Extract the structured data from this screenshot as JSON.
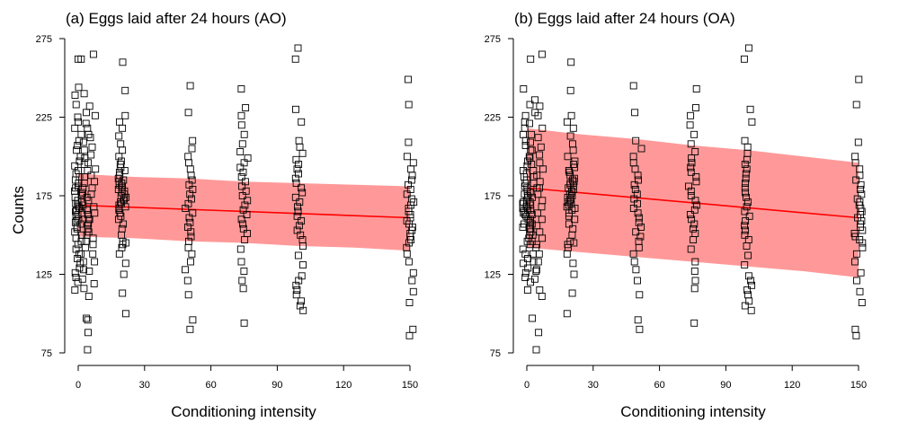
{
  "figure": {
    "ylabel": "Counts"
  },
  "chart_data": [
    {
      "type": "scatter",
      "title": "(a) Eggs laid after 24 hours (AO)",
      "xlabel": "Conditioning intensity",
      "ylabel": "Counts",
      "xlim": [
        0,
        150
      ],
      "ylim": [
        75,
        275
      ],
      "xticks": [
        "0",
        "30",
        "60",
        "90",
        "120",
        "150"
      ],
      "yticks": [
        "75",
        "125",
        "175",
        "225",
        "275"
      ],
      "band_color": "#ff9999",
      "line_color": "#ff0000",
      "fit_line": {
        "x": [
          0,
          150
        ],
        "y": [
          169,
          161
        ]
      },
      "band": {
        "x": [
          0,
          25,
          50,
          75,
          100,
          125,
          150
        ],
        "lower": [
          149,
          148,
          146,
          145,
          143,
          142,
          140
        ],
        "upper": [
          189,
          187,
          186,
          184,
          183,
          182,
          181
        ]
      },
      "groups": [
        {
          "x": 0,
          "y": [
            262,
            244,
            239,
            233,
            225,
            222,
            218,
            214,
            210,
            207,
            204,
            200,
            197,
            194,
            191,
            189,
            187,
            185,
            183,
            181,
            180,
            178,
            176,
            175,
            174,
            172,
            171,
            170,
            169,
            168,
            167,
            166,
            165,
            164,
            163,
            162,
            160,
            159,
            158,
            157,
            155,
            154,
            152,
            150,
            148,
            146,
            144,
            141,
            138,
            135,
            132,
            129,
            126,
            123,
            120,
            115
          ]
        },
        {
          "x": 3,
          "y": [
            262,
            240,
            228,
            221,
            214,
            209,
            204,
            199,
            195,
            191,
            187,
            183,
            180,
            177,
            174,
            171,
            169,
            166,
            163,
            160,
            157,
            154,
            150,
            146,
            142,
            138,
            133,
            128,
            122,
            116,
            97
          ]
        },
        {
          "x": 6,
          "y": [
            265,
            232,
            226,
            218,
            212,
            206,
            201,
            196,
            192,
            188,
            184,
            180,
            176,
            172,
            168,
            164,
            160,
            156,
            152,
            148,
            144,
            138,
            133,
            127,
            119,
            111,
            96,
            88,
            77
          ]
        },
        {
          "x": 20,
          "y": [
            260,
            242,
            226,
            222,
            218,
            213,
            208,
            204,
            200,
            197,
            195,
            193,
            191,
            190,
            188,
            186,
            185,
            184,
            183,
            182,
            181,
            180,
            179,
            178,
            177,
            176,
            175,
            174,
            173,
            172,
            171,
            170,
            169,
            168,
            167,
            166,
            164,
            162,
            160,
            157,
            154,
            150,
            146,
            145,
            144,
            142,
            138,
            132,
            125,
            113,
            100
          ]
        },
        {
          "x": 50,
          "y": [
            245,
            228,
            210,
            205,
            200,
            196,
            192,
            188,
            185,
            182,
            179,
            176,
            173,
            170,
            167,
            164,
            161,
            158,
            155,
            152,
            149,
            146,
            142,
            138,
            133,
            128,
            121,
            112,
            96,
            90
          ]
        },
        {
          "x": 75,
          "y": [
            243,
            231,
            226,
            220,
            214,
            208,
            203,
            199,
            196,
            193,
            190,
            187,
            184,
            181,
            178,
            175,
            172,
            169,
            166,
            163,
            160,
            157,
            154,
            151,
            147,
            141,
            133,
            127,
            121,
            116,
            94
          ]
        },
        {
          "x": 100,
          "y": [
            269,
            262,
            230,
            222,
            210,
            206,
            202,
            198,
            195,
            192,
            189,
            186,
            183,
            180,
            177,
            174,
            171,
            168,
            165,
            162,
            159,
            156,
            153,
            150,
            147,
            143,
            137,
            131,
            124,
            121,
            118,
            115,
            112,
            108,
            105,
            102
          ]
        },
        {
          "x": 150,
          "y": [
            249,
            233,
            209,
            200,
            196,
            192,
            188,
            185,
            182,
            179,
            176,
            173,
            171,
            169,
            167,
            165,
            163,
            161,
            159,
            157,
            155,
            153,
            151,
            149,
            147,
            145,
            142,
            138,
            133,
            126,
            121,
            114,
            107,
            90,
            86
          ]
        }
      ]
    },
    {
      "type": "scatter",
      "title": "(b) Eggs laid after 24 hours (OA)",
      "xlabel": "Conditioning intensity",
      "ylabel": "",
      "xlim": [
        0,
        150
      ],
      "ylim": [
        75,
        275
      ],
      "xticks": [
        "0",
        "30",
        "60",
        "90",
        "120",
        "150"
      ],
      "yticks": [
        "75",
        "125",
        "175",
        "225",
        "275"
      ],
      "band_color": "#ff9999",
      "line_color": "#ff0000",
      "fit_line": {
        "x": [
          0,
          150
        ],
        "y": [
          180,
          161
        ]
      },
      "band": {
        "x": [
          0,
          25,
          50,
          75,
          100,
          125,
          150
        ],
        "lower": [
          142,
          139,
          136,
          133,
          130,
          127,
          123
        ],
        "upper": [
          218,
          214,
          211,
          207,
          204,
          200,
          196
        ]
      },
      "groups": [
        {
          "x": 0,
          "y": [
            243,
            233,
            226,
            222,
            218,
            214,
            210,
            207,
            204,
            200,
            197,
            194,
            191,
            189,
            187,
            185,
            183,
            181,
            180,
            178,
            176,
            175,
            174,
            172,
            171,
            170,
            169,
            168,
            167,
            166,
            165,
            164,
            163,
            162,
            160,
            159,
            158,
            157,
            155,
            154,
            152,
            150,
            148,
            146,
            144,
            141,
            138,
            135,
            132,
            129,
            126,
            123,
            120,
            115
          ]
        },
        {
          "x": 3,
          "y": [
            262,
            236,
            228,
            221,
            214,
            209,
            204,
            199,
            195,
            191,
            187,
            183,
            180,
            177,
            174,
            171,
            169,
            166,
            163,
            160,
            157,
            154,
            150,
            146,
            142,
            138,
            133,
            128,
            122,
            97
          ]
        },
        {
          "x": 6,
          "y": [
            265,
            232,
            226,
            218,
            212,
            206,
            201,
            196,
            192,
            188,
            184,
            180,
            176,
            172,
            168,
            164,
            160,
            156,
            152,
            148,
            144,
            138,
            133,
            127,
            115,
            111,
            88,
            77
          ]
        },
        {
          "x": 20,
          "y": [
            260,
            242,
            226,
            222,
            218,
            213,
            208,
            204,
            200,
            197,
            195,
            193,
            191,
            190,
            188,
            186,
            185,
            184,
            183,
            182,
            181,
            180,
            179,
            178,
            177,
            176,
            175,
            174,
            173,
            172,
            171,
            170,
            169,
            168,
            167,
            166,
            164,
            162,
            160,
            157,
            154,
            150,
            146,
            145,
            144,
            142,
            138,
            132,
            125,
            113,
            100
          ]
        },
        {
          "x": 50,
          "y": [
            245,
            228,
            210,
            205,
            200,
            196,
            192,
            188,
            185,
            182,
            179,
            176,
            173,
            170,
            167,
            164,
            161,
            158,
            155,
            152,
            149,
            146,
            142,
            138,
            133,
            128,
            121,
            112,
            96,
            90
          ]
        },
        {
          "x": 75,
          "y": [
            243,
            231,
            226,
            220,
            214,
            208,
            203,
            199,
            196,
            193,
            190,
            187,
            184,
            181,
            178,
            175,
            172,
            169,
            166,
            163,
            160,
            157,
            154,
            151,
            147,
            141,
            133,
            127,
            121,
            116,
            94
          ]
        },
        {
          "x": 100,
          "y": [
            269,
            262,
            230,
            222,
            210,
            206,
            202,
            198,
            195,
            192,
            189,
            186,
            183,
            180,
            177,
            174,
            171,
            168,
            165,
            162,
            159,
            156,
            153,
            150,
            147,
            143,
            137,
            131,
            124,
            121,
            118,
            115,
            112,
            108,
            105,
            102
          ]
        },
        {
          "x": 150,
          "y": [
            249,
            233,
            209,
            200,
            196,
            192,
            188,
            185,
            182,
            179,
            176,
            173,
            171,
            169,
            167,
            165,
            163,
            161,
            159,
            157,
            155,
            153,
            151,
            149,
            147,
            145,
            142,
            138,
            133,
            126,
            121,
            114,
            107,
            90,
            86
          ]
        }
      ]
    }
  ]
}
